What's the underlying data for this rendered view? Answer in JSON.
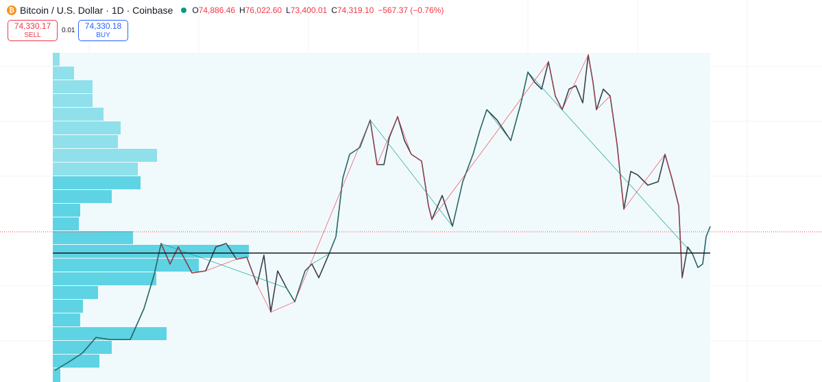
{
  "header": {
    "title": "Bitcoin / U.S. Dollar · 1D · Coinbase",
    "ohlc": [
      {
        "label": "O",
        "value": "74,886.46"
      },
      {
        "label": "H",
        "value": "76,022.60"
      },
      {
        "label": "L",
        "value": "73,400.01"
      },
      {
        "label": "C",
        "value": "74,319.10"
      }
    ],
    "change": "−567.37 (−0.76%)"
  },
  "trade": {
    "sell_price": "74,330.17",
    "sell_label": "SELL",
    "spread": "0.01",
    "buy_price": "74,330.18",
    "buy_label": "BUY"
  }
}
